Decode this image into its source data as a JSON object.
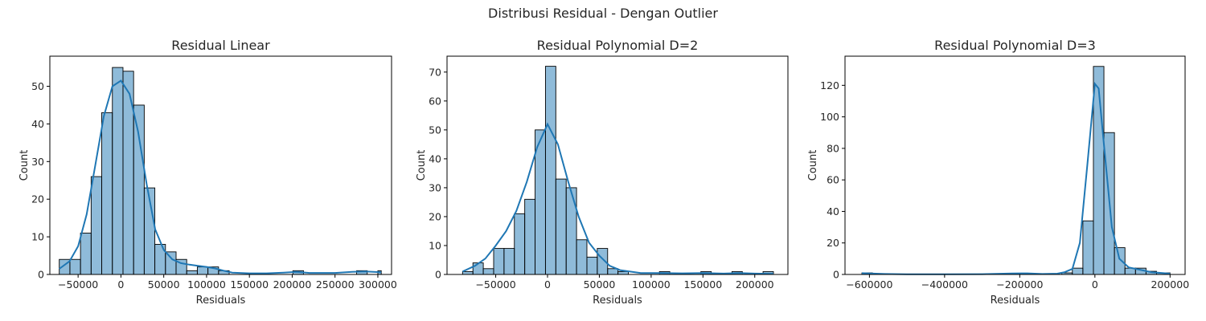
{
  "figure": {
    "suptitle": "Distribusi Residual - Dengan Outlier"
  },
  "chart_data": [
    {
      "type": "bar",
      "subtype": "histogram",
      "title": "Residual Linear",
      "xlabel": "Residuals",
      "ylabel": "Count",
      "xlim": [
        -83000,
        316000
      ],
      "ylim": [
        0,
        58
      ],
      "xticks": [
        -50000,
        0,
        50000,
        100000,
        150000,
        200000,
        250000,
        300000
      ],
      "yticks": [
        0,
        10,
        20,
        30,
        40,
        50
      ],
      "color": "#1f77b4",
      "bins": [
        {
          "x0": -72000,
          "x1": -59600,
          "count": 4
        },
        {
          "x0": -59600,
          "x1": -47200,
          "count": 4
        },
        {
          "x0": -47200,
          "x1": -34800,
          "count": 11
        },
        {
          "x0": -34800,
          "x1": -22400,
          "count": 26
        },
        {
          "x0": -22400,
          "x1": -10000,
          "count": 43
        },
        {
          "x0": -10000,
          "x1": 2400,
          "count": 55
        },
        {
          "x0": 2400,
          "x1": 14800,
          "count": 54
        },
        {
          "x0": 14800,
          "x1": 27200,
          "count": 45
        },
        {
          "x0": 27200,
          "x1": 39600,
          "count": 23
        },
        {
          "x0": 39600,
          "x1": 52000,
          "count": 8
        },
        {
          "x0": 52000,
          "x1": 64400,
          "count": 6
        },
        {
          "x0": 64400,
          "x1": 76800,
          "count": 4
        },
        {
          "x0": 76800,
          "x1": 89200,
          "count": 1
        },
        {
          "x0": 89200,
          "x1": 101600,
          "count": 2
        },
        {
          "x0": 101600,
          "x1": 114000,
          "count": 2
        },
        {
          "x0": 114000,
          "x1": 126400,
          "count": 1
        },
        {
          "x0": 126400,
          "x1": 138800,
          "count": 0
        },
        {
          "x0": 138800,
          "x1": 151200,
          "count": 0
        },
        {
          "x0": 151200,
          "x1": 163600,
          "count": 0
        },
        {
          "x0": 163600,
          "x1": 176000,
          "count": 0
        },
        {
          "x0": 176000,
          "x1": 188400,
          "count": 0
        },
        {
          "x0": 188400,
          "x1": 200800,
          "count": 0
        },
        {
          "x0": 200800,
          "x1": 213200,
          "count": 1
        },
        {
          "x0": 213200,
          "x1": 225600,
          "count": 0
        },
        {
          "x0": 225600,
          "x1": 238000,
          "count": 0
        },
        {
          "x0": 238000,
          "x1": 250400,
          "count": 0
        },
        {
          "x0": 250400,
          "x1": 262800,
          "count": 0
        },
        {
          "x0": 262800,
          "x1": 275200,
          "count": 0
        },
        {
          "x0": 275200,
          "x1": 287600,
          "count": 1
        },
        {
          "x0": 287600,
          "x1": 300000,
          "count": 0
        },
        {
          "x0": 300000,
          "x1": 304000,
          "count": 1
        }
      ],
      "kde": [
        [
          -72000,
          1.5
        ],
        [
          -60000,
          3.5
        ],
        [
          -50000,
          7.5
        ],
        [
          -40000,
          16
        ],
        [
          -30000,
          29
        ],
        [
          -20000,
          42
        ],
        [
          -10000,
          50
        ],
        [
          0,
          51.5
        ],
        [
          10000,
          48
        ],
        [
          20000,
          38
        ],
        [
          30000,
          24
        ],
        [
          40000,
          12
        ],
        [
          50000,
          6.5
        ],
        [
          60000,
          4
        ],
        [
          70000,
          3
        ],
        [
          80000,
          2.6
        ],
        [
          90000,
          2.3
        ],
        [
          100000,
          2
        ],
        [
          110000,
          1.6
        ],
        [
          120000,
          1
        ],
        [
          130000,
          0.5
        ],
        [
          150000,
          0.3
        ],
        [
          170000,
          0.3
        ],
        [
          190000,
          0.5
        ],
        [
          205000,
          0.7
        ],
        [
          220000,
          0.4
        ],
        [
          250000,
          0.4
        ],
        [
          270000,
          0.7
        ],
        [
          285000,
          0.8
        ],
        [
          304000,
          0.6
        ]
      ]
    },
    {
      "type": "bar",
      "subtype": "histogram",
      "title": "Residual Polynomial D=2",
      "xlabel": "Residuals",
      "ylabel": "Count",
      "xlim": [
        -97000,
        232000
      ],
      "ylim": [
        0,
        75.5
      ],
      "xticks": [
        -50000,
        0,
        50000,
        100000,
        150000,
        200000
      ],
      "yticks": [
        0,
        10,
        20,
        30,
        40,
        50,
        60,
        70
      ],
      "color": "#1f77b4",
      "bins": [
        {
          "x0": -82000,
          "x1": -72000,
          "count": 1
        },
        {
          "x0": -72000,
          "x1": -62000,
          "count": 4
        },
        {
          "x0": -62000,
          "x1": -52000,
          "count": 2
        },
        {
          "x0": -52000,
          "x1": -42000,
          "count": 9
        },
        {
          "x0": -42000,
          "x1": -32000,
          "count": 9
        },
        {
          "x0": -32000,
          "x1": -22000,
          "count": 21
        },
        {
          "x0": -22000,
          "x1": -12000,
          "count": 26
        },
        {
          "x0": -12000,
          "x1": -2000,
          "count": 50
        },
        {
          "x0": -2000,
          "x1": 8000,
          "count": 72
        },
        {
          "x0": 8000,
          "x1": 18000,
          "count": 33
        },
        {
          "x0": 18000,
          "x1": 28000,
          "count": 30
        },
        {
          "x0": 28000,
          "x1": 38000,
          "count": 12
        },
        {
          "x0": 38000,
          "x1": 48000,
          "count": 6
        },
        {
          "x0": 48000,
          "x1": 58000,
          "count": 9
        },
        {
          "x0": 58000,
          "x1": 68000,
          "count": 2
        },
        {
          "x0": 68000,
          "x1": 78000,
          "count": 1
        },
        {
          "x0": 108000,
          "x1": 118000,
          "count": 1
        },
        {
          "x0": 148000,
          "x1": 158000,
          "count": 1
        },
        {
          "x0": 178000,
          "x1": 188000,
          "count": 1
        },
        {
          "x0": 208000,
          "x1": 218000,
          "count": 1
        }
      ],
      "kde": [
        [
          -82000,
          1
        ],
        [
          -70000,
          3
        ],
        [
          -60000,
          5.5
        ],
        [
          -50000,
          10
        ],
        [
          -40000,
          15
        ],
        [
          -30000,
          22
        ],
        [
          -20000,
          32
        ],
        [
          -10000,
          44
        ],
        [
          0,
          52
        ],
        [
          10000,
          45
        ],
        [
          20000,
          32
        ],
        [
          30000,
          20
        ],
        [
          40000,
          11
        ],
        [
          50000,
          6.5
        ],
        [
          60000,
          3
        ],
        [
          70000,
          1.5
        ],
        [
          90000,
          0.5
        ],
        [
          110000,
          0.5
        ],
        [
          130000,
          0.4
        ],
        [
          150000,
          0.5
        ],
        [
          170000,
          0.3
        ],
        [
          185000,
          0.5
        ],
        [
          200000,
          0.3
        ],
        [
          218000,
          0.2
        ]
      ]
    },
    {
      "type": "bar",
      "subtype": "histogram",
      "title": "Residual Polynomial D=3",
      "xlabel": "Residuals",
      "ylabel": "Count",
      "xlim": [
        -665000,
        240000
      ],
      "ylim": [
        0,
        138.5
      ],
      "xticks": [
        -600000,
        -400000,
        -200000,
        0,
        200000
      ],
      "yticks": [
        0,
        20,
        40,
        60,
        80,
        100,
        120
      ],
      "color": "#1f77b4",
      "bins": [
        {
          "x0": -620000,
          "x1": -592000,
          "count": 1
        },
        {
          "x0": -200000,
          "x1": -172000,
          "count": 0
        },
        {
          "x0": -88000,
          "x1": -60000,
          "count": 1
        },
        {
          "x0": -60000,
          "x1": -32000,
          "count": 4
        },
        {
          "x0": -32000,
          "x1": -4000,
          "count": 34
        },
        {
          "x0": -4000,
          "x1": 24000,
          "count": 132
        },
        {
          "x0": 24000,
          "x1": 52000,
          "count": 90
        },
        {
          "x0": 52000,
          "x1": 80000,
          "count": 17
        },
        {
          "x0": 80000,
          "x1": 108000,
          "count": 4
        },
        {
          "x0": 108000,
          "x1": 136000,
          "count": 4
        },
        {
          "x0": 136000,
          "x1": 164000,
          "count": 2
        },
        {
          "x0": 164000,
          "x1": 200000,
          "count": 1
        }
      ],
      "kde": [
        [
          -620000,
          0.8
        ],
        [
          -560000,
          0.3
        ],
        [
          -500000,
          0.1
        ],
        [
          -400000,
          0.1
        ],
        [
          -300000,
          0.2
        ],
        [
          -220000,
          0.6
        ],
        [
          -180000,
          0.7
        ],
        [
          -140000,
          0.3
        ],
        [
          -100000,
          0.5
        ],
        [
          -80000,
          1.5
        ],
        [
          -60000,
          3.5
        ],
        [
          -40000,
          20
        ],
        [
          -20000,
          70
        ],
        [
          0,
          121
        ],
        [
          10000,
          118
        ],
        [
          25000,
          80
        ],
        [
          45000,
          30
        ],
        [
          65000,
          10
        ],
        [
          90000,
          4.5
        ],
        [
          120000,
          3
        ],
        [
          150000,
          1.5
        ],
        [
          200000,
          0.5
        ]
      ]
    }
  ]
}
